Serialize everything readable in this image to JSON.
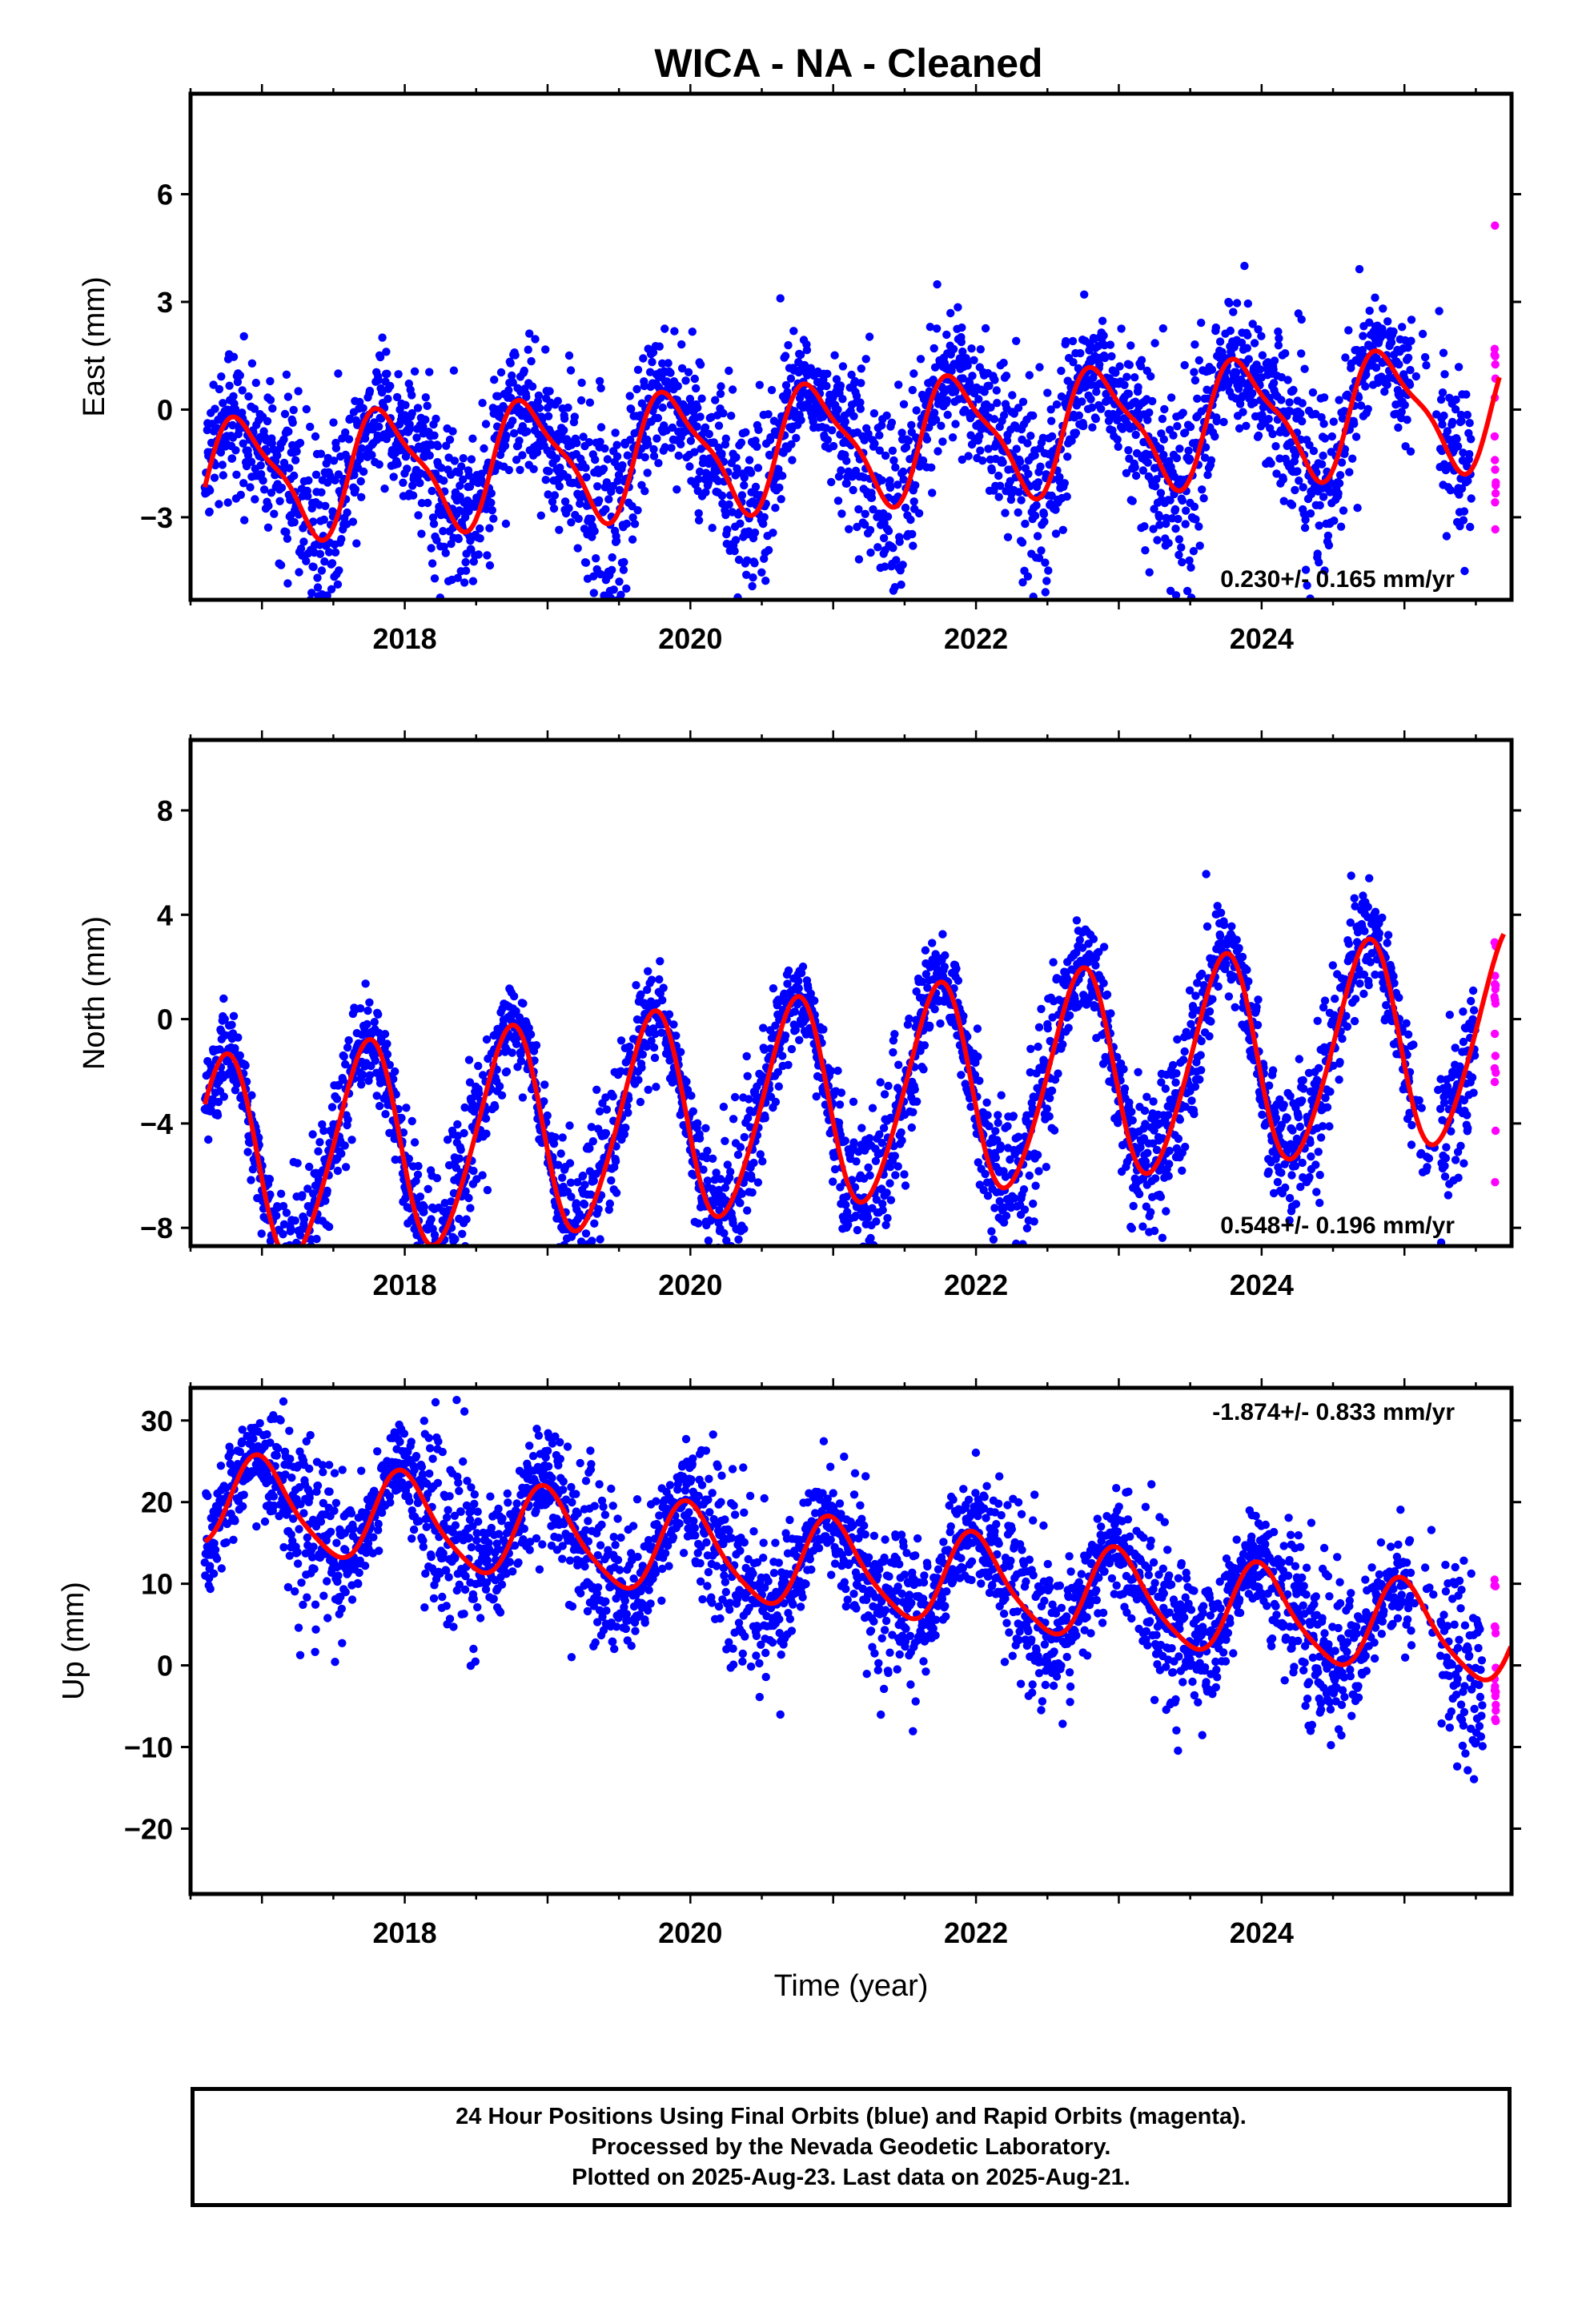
{
  "chart_data": [
    {
      "type": "scatter",
      "title": "WICA  - NA - Cleaned",
      "ylabel": "East (mm)",
      "xlabel": "",
      "xlim": [
        2016.5,
        2025.75
      ],
      "ylim": [
        -5.3,
        8.8
      ],
      "yticks": [
        -3,
        0,
        3,
        6
      ],
      "yticklabels": [
        "−3",
        "0",
        "3",
        "6"
      ],
      "xticks": [
        2018,
        2020,
        2022,
        2024
      ],
      "xticklabels": [
        "2018",
        "2020",
        "2022",
        "2024"
      ],
      "rate_label": "0.230+/- 0.165 mm/yr",
      "rate_position": "bottom-right",
      "start": 2016.6,
      "final_end": 2025.47,
      "rapid_end": 2025.64,
      "model": {
        "offset": -0.95,
        "trend": 0.23,
        "amp1": 1.6,
        "phase1": 0.62,
        "amp2": 0.45,
        "phase2": 0.1
      },
      "noise": 1.15,
      "start_value": 0.3,
      "series": [
        {
          "name": "Final Orbits",
          "color": "#0000ff"
        },
        {
          "name": "Rapid Orbits",
          "color": "#ff00ff"
        },
        {
          "name": "",
          "color": "#ff0000"
        }
      ]
    },
    {
      "type": "scatter",
      "title": "",
      "ylabel": "North (mm)",
      "xlabel": "",
      "xlim": [
        2016.5,
        2025.75
      ],
      "ylim": [
        -8.7,
        10.7
      ],
      "yticks": [
        -8,
        -4,
        0,
        4,
        8
      ],
      "yticklabels": [
        "−8",
        "−4",
        "0",
        "4",
        "8"
      ],
      "xticks": [
        2018,
        2020,
        2022,
        2024
      ],
      "xticklabels": [
        "2018",
        "2020",
        "2022",
        "2024"
      ],
      "rate_label": "0.548+/- 0.196 mm/yr",
      "rate_position": "bottom-right",
      "start": 2016.6,
      "final_end": 2025.5,
      "rapid_end": 2025.64,
      "model": {
        "offset": -3.2,
        "trend": 0.55,
        "amp1": 4.0,
        "phase1": 0.48,
        "amp2": 0.4,
        "phase2": 0.2
      },
      "noise": 1.2,
      "start_value": 2.0,
      "series": [
        {
          "name": "Final Orbits",
          "color": "#0000ff"
        },
        {
          "name": "Rapid Orbits",
          "color": "#ff00ff"
        },
        {
          "name": "",
          "color": "#ff0000"
        }
      ]
    },
    {
      "type": "scatter",
      "title": "",
      "ylabel": "Up (mm)",
      "xlabel": "Time (year)",
      "xlim": [
        2016.5,
        2025.75
      ],
      "ylim": [
        -28,
        34
      ],
      "yticks": [
        -20,
        -10,
        0,
        10,
        20,
        30
      ],
      "yticklabels": [
        "−20",
        "−10",
        "0",
        "10",
        "20",
        "30"
      ],
      "xticks": [
        2018,
        2020,
        2022,
        2024
      ],
      "xticklabels": [
        "2018",
        "2020",
        "2022",
        "2024"
      ],
      "rate_label": "-1.874+/- 0.833 mm/yr",
      "rate_position": "top-right",
      "start": 2016.6,
      "final_end": 2025.55,
      "rapid_end": 2025.64,
      "model": {
        "offset": 12.0,
        "trend": -1.874,
        "amp1": 5.5,
        "phase1": 0.75,
        "amp2": 1.0,
        "phase2": 0.3
      },
      "noise": 4.2,
      "start_value": 10.0,
      "series": [
        {
          "name": "Final Orbits",
          "color": "#0000ff"
        },
        {
          "name": "Rapid Orbits",
          "color": "#ff00ff"
        },
        {
          "name": "",
          "color": "#ff0000"
        }
      ]
    }
  ],
  "caption": {
    "line1": "24 Hour Positions Using Final Orbits (blue) and Rapid Orbits (magenta).",
    "line2": "Processed by the Nevada Geodetic Laboratory.",
    "line3": "Plotted on 2025-Aug-23. Last data on 2025-Aug-21."
  }
}
